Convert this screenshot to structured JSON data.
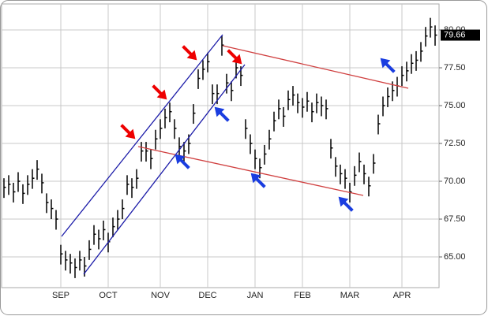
{
  "chart_data": {
    "type": "ohlc",
    "categories": [
      null,
      null,
      null,
      null,
      null,
      null,
      null,
      null,
      null,
      null,
      null,
      null,
      "SEP",
      null,
      null,
      null,
      null,
      null,
      null,
      null,
      null,
      null,
      "OCT",
      null,
      null,
      null,
      null,
      null,
      null,
      null,
      null,
      null,
      null,
      "NOV",
      null,
      null,
      null,
      null,
      null,
      null,
      null,
      null,
      null,
      "DEC",
      null,
      null,
      null,
      null,
      null,
      null,
      null,
      null,
      null,
      "JAN",
      null,
      null,
      null,
      null,
      null,
      null,
      null,
      null,
      null,
      "FEB",
      null,
      null,
      null,
      null,
      null,
      null,
      null,
      null,
      null,
      "MAR",
      null,
      null,
      null,
      null,
      null,
      null,
      null,
      null,
      null,
      null,
      "APR",
      null,
      null,
      null,
      null,
      null,
      null,
      null
    ],
    "high": [
      70.2,
      70.4,
      69.9,
      70.6,
      69.8,
      70.4,
      70.8,
      71.4,
      70.5,
      69.2,
      68.8,
      68.1,
      65.8,
      65.4,
      65.2,
      64.9,
      65.4,
      65.0,
      66.1,
      67.1,
      66.8,
      67.4,
      66.6,
      67.6,
      68.1,
      68.8,
      70.4,
      70.2,
      70.8,
      72.6,
      72.6,
      72.1,
      73.4,
      74.1,
      74.8,
      75.2,
      74.1,
      72.9,
      72.6,
      73.1,
      75.1,
      77.4,
      78.0,
      78.5,
      76.4,
      76.4,
      79.6,
      77.1,
      76.6,
      78.1,
      77.6,
      74.1,
      73.1,
      72.1,
      71.5,
      72.4,
      73.4,
      74.6,
      75.4,
      74.9,
      76.0,
      76.3,
      75.8,
      75.5,
      75.9,
      75.2,
      75.8,
      75.6,
      75.4,
      72.8,
      71.6,
      71.1,
      70.8,
      69.9,
      71.0,
      71.9,
      71.1,
      70.3,
      71.8,
      74.4,
      75.6,
      76.2,
      76.6,
      76.9,
      77.6,
      77.9,
      78.4,
      78.6,
      79.2,
      80.2,
      80.8,
      80.3
    ],
    "low": [
      68.9,
      69.1,
      68.6,
      69.3,
      68.5,
      69.1,
      69.5,
      70.1,
      69.2,
      67.9,
      67.5,
      66.8,
      64.5,
      64.1,
      63.9,
      63.6,
      64.1,
      63.7,
      64.8,
      65.8,
      65.5,
      66.1,
      65.3,
      66.3,
      66.8,
      67.5,
      69.1,
      68.9,
      69.5,
      71.3,
      71.3,
      70.8,
      72.1,
      72.8,
      73.5,
      73.9,
      72.8,
      71.6,
      71.3,
      71.8,
      73.8,
      76.1,
      76.7,
      77.2,
      75.1,
      75.1,
      78.3,
      75.8,
      75.3,
      76.8,
      76.3,
      72.8,
      71.8,
      70.8,
      70.2,
      71.1,
      72.1,
      73.3,
      74.1,
      73.6,
      74.7,
      75.0,
      74.5,
      74.2,
      74.6,
      73.9,
      74.5,
      74.3,
      74.1,
      71.5,
      70.3,
      69.8,
      69.5,
      68.6,
      69.7,
      70.6,
      69.8,
      69.0,
      70.5,
      73.1,
      74.3,
      74.9,
      75.3,
      75.6,
      76.3,
      76.6,
      77.1,
      77.3,
      77.9,
      78.9,
      79.5,
      78.96
    ],
    "close": [
      69.6,
      69.8,
      69.3,
      70.0,
      69.2,
      69.8,
      70.2,
      70.8,
      69.9,
      68.6,
      68.2,
      67.5,
      65.2,
      64.8,
      64.6,
      64.3,
      64.8,
      64.4,
      65.5,
      66.5,
      66.2,
      66.8,
      66.0,
      67.0,
      67.5,
      68.2,
      69.8,
      69.6,
      70.2,
      72.0,
      72.0,
      71.5,
      72.8,
      73.5,
      74.2,
      74.6,
      73.5,
      72.3,
      72.0,
      72.5,
      74.5,
      76.8,
      77.4,
      77.9,
      75.8,
      75.8,
      79.0,
      76.5,
      76.0,
      77.5,
      77.0,
      73.5,
      72.5,
      71.5,
      70.9,
      71.8,
      72.8,
      74.0,
      74.8,
      74.3,
      75.4,
      75.7,
      75.2,
      74.9,
      75.3,
      74.6,
      75.2,
      75.0,
      74.8,
      72.2,
      71.0,
      70.5,
      70.2,
      69.3,
      70.4,
      71.3,
      70.5,
      69.7,
      71.2,
      73.8,
      75.0,
      75.6,
      76.0,
      76.3,
      77.0,
      77.3,
      77.8,
      78.0,
      78.6,
      79.6,
      80.2,
      79.66
    ],
    "color": "#000000",
    "last_price": 79.66,
    "ylim": [
      62.97,
      81.72
    ],
    "yticks": [
      {
        "value": 65,
        "label": "65.00"
      },
      {
        "value": 67.5,
        "label": "67.50"
      },
      {
        "value": 70,
        "label": "70.00"
      },
      {
        "value": 72.5,
        "label": "72.50"
      },
      {
        "value": 75,
        "label": "75.00"
      },
      {
        "value": 77.5,
        "label": "77.50"
      },
      {
        "value": 80,
        "label": "80.00"
      }
    ],
    "grid": true
  }
}
